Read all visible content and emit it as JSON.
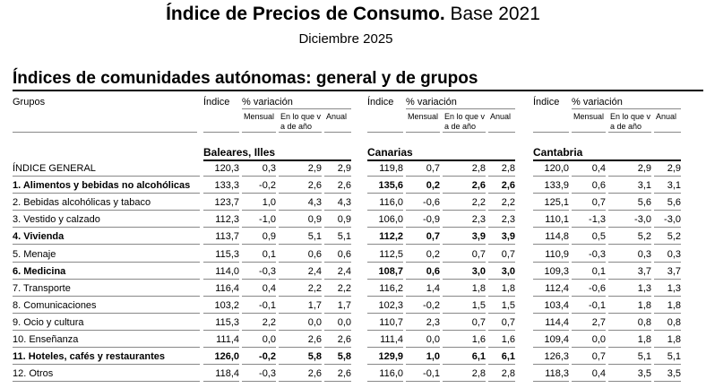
{
  "header": {
    "title_bold": "Índice de Precios de Consumo.",
    "title_rest": "Base 2021",
    "subtitle": "Diciembre 2025"
  },
  "section_title": "Índices de comunidades autónomas: general y de grupos",
  "table": {
    "group_header": "Grupos",
    "column_headers": {
      "index": "Índice",
      "variation": "% variación",
      "monthly": "Mensual",
      "ytd": "En lo que va de año",
      "annual": "Anual"
    },
    "regions": [
      "Baleares, Illes",
      "Canarias",
      "Cantabria"
    ],
    "rows": [
      {
        "label": "ÍNDICE GENERAL",
        "bold": false,
        "bold_regions": [],
        "values": [
          [
            "120,3",
            "0,3",
            "2,9",
            "2,9"
          ],
          [
            "119,8",
            "0,7",
            "2,8",
            "2,8"
          ],
          [
            "120,0",
            "0,4",
            "2,9",
            "2,9"
          ]
        ]
      },
      {
        "label": "1. Alimentos y bebidas no alcohólicas",
        "bold": true,
        "bold_regions": [
          1
        ],
        "values": [
          [
            "133,3",
            "-0,2",
            "2,6",
            "2,6"
          ],
          [
            "135,6",
            "0,2",
            "2,6",
            "2,6"
          ],
          [
            "133,9",
            "0,6",
            "3,1",
            "3,1"
          ]
        ]
      },
      {
        "label": "2. Bebidas alcohólicas y tabaco",
        "bold": false,
        "bold_regions": [],
        "values": [
          [
            "123,7",
            "1,0",
            "4,3",
            "4,3"
          ],
          [
            "116,0",
            "-0,6",
            "2,2",
            "2,2"
          ],
          [
            "125,1",
            "0,7",
            "5,6",
            "5,6"
          ]
        ]
      },
      {
        "label": "3. Vestido y calzado",
        "bold": false,
        "bold_regions": [],
        "values": [
          [
            "112,3",
            "-1,0",
            "0,9",
            "0,9"
          ],
          [
            "106,0",
            "-0,9",
            "2,3",
            "2,3"
          ],
          [
            "110,1",
            "-1,3",
            "-3,0",
            "-3,0"
          ]
        ]
      },
      {
        "label": "4. Vivienda",
        "bold": true,
        "bold_regions": [
          1
        ],
        "values": [
          [
            "113,7",
            "0,9",
            "5,1",
            "5,1"
          ],
          [
            "112,2",
            "0,7",
            "3,9",
            "3,9"
          ],
          [
            "114,8",
            "0,5",
            "5,2",
            "5,2"
          ]
        ]
      },
      {
        "label": "5. Menaje",
        "bold": false,
        "bold_regions": [],
        "values": [
          [
            "115,3",
            "0,1",
            "0,6",
            "0,6"
          ],
          [
            "112,5",
            "0,2",
            "0,7",
            "0,7"
          ],
          [
            "110,9",
            "-0,3",
            "0,3",
            "0,3"
          ]
        ]
      },
      {
        "label": "6. Medicina",
        "bold": true,
        "bold_regions": [
          1
        ],
        "values": [
          [
            "114,0",
            "-0,3",
            "2,4",
            "2,4"
          ],
          [
            "108,7",
            "0,6",
            "3,0",
            "3,0"
          ],
          [
            "109,3",
            "0,1",
            "3,7",
            "3,7"
          ]
        ]
      },
      {
        "label": "7. Transporte",
        "bold": false,
        "bold_regions": [],
        "values": [
          [
            "116,4",
            "0,4",
            "2,2",
            "2,2"
          ],
          [
            "116,2",
            "1,4",
            "1,8",
            "1,8"
          ],
          [
            "112,4",
            "-0,6",
            "1,3",
            "1,3"
          ]
        ]
      },
      {
        "label": "8. Comunicaciones",
        "bold": false,
        "bold_regions": [],
        "values": [
          [
            "103,2",
            "-0,1",
            "1,7",
            "1,7"
          ],
          [
            "102,3",
            "-0,2",
            "1,5",
            "1,5"
          ],
          [
            "103,4",
            "-0,1",
            "1,8",
            "1,8"
          ]
        ]
      },
      {
        "label": "9. Ocio y cultura",
        "bold": false,
        "bold_regions": [],
        "values": [
          [
            "115,3",
            "2,2",
            "0,0",
            "0,0"
          ],
          [
            "110,7",
            "2,3",
            "0,7",
            "0,7"
          ],
          [
            "114,4",
            "2,7",
            "0,8",
            "0,8"
          ]
        ]
      },
      {
        "label": "10. Enseñanza",
        "bold": false,
        "bold_regions": [],
        "values": [
          [
            "111,4",
            "0,0",
            "2,6",
            "2,6"
          ],
          [
            "111,4",
            "0,0",
            "1,6",
            "1,6"
          ],
          [
            "109,4",
            "0,0",
            "1,8",
            "1,8"
          ]
        ]
      },
      {
        "label": "11. Hoteles, cafés y restaurantes",
        "bold": true,
        "bold_regions": [
          0,
          1
        ],
        "values": [
          [
            "126,0",
            "-0,2",
            "5,8",
            "5,8"
          ],
          [
            "129,9",
            "1,0",
            "6,1",
            "6,1"
          ],
          [
            "126,3",
            "0,7",
            "5,1",
            "5,1"
          ]
        ]
      },
      {
        "label": "12. Otros",
        "bold": false,
        "bold_regions": [],
        "values": [
          [
            "118,4",
            "-0,3",
            "2,6",
            "2,6"
          ],
          [
            "116,0",
            "-0,1",
            "2,8",
            "2,8"
          ],
          [
            "118,3",
            "0,4",
            "3,5",
            "3,5"
          ]
        ]
      }
    ]
  }
}
